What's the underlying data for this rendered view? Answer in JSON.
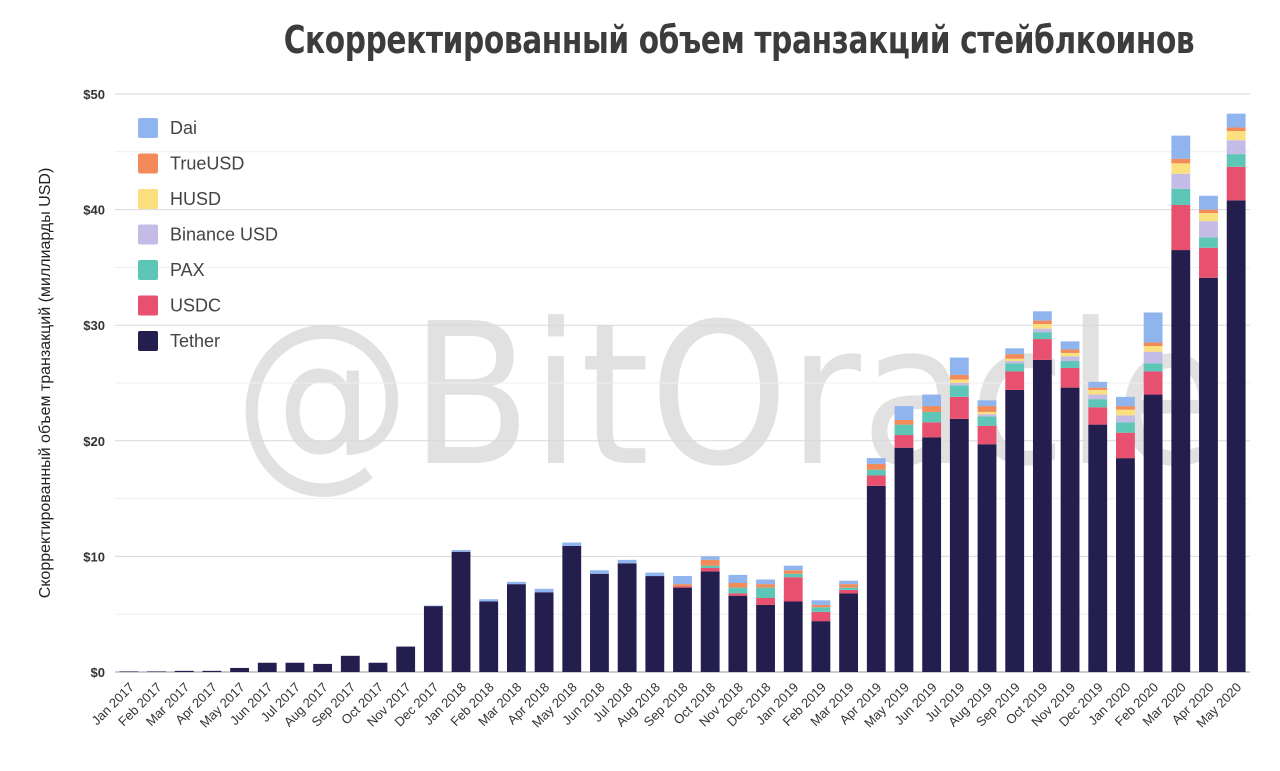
{
  "chart_data": {
    "type": "bar",
    "stacked": true,
    "title": "Скорректированный объем транзакций стейблкоинов",
    "ylabel": "Скорректированный объем транзакций (миллиарды USD)",
    "ylim": [
      0,
      50
    ],
    "yticks": [
      0,
      10,
      20,
      30,
      40,
      50
    ],
    "ytick_labels": [
      "$0",
      "$10",
      "$20",
      "$30",
      "$40",
      "$50"
    ],
    "grid": true,
    "legend_position": "top-left",
    "categories": [
      "Jan 2017",
      "Feb 2017",
      "Mar 2017",
      "Apr 2017",
      "May 2017",
      "Jun 2017",
      "Jul 2017",
      "Aug 2017",
      "Sep 2017",
      "Oct 2017",
      "Nov 2017",
      "Dec 2017",
      "Jan 2018",
      "Feb 2018",
      "Mar 2018",
      "Apr 2018",
      "May 2018",
      "Jun 2018",
      "Jul 2018",
      "Aug 2018",
      "Sep 2018",
      "Oct 2018",
      "Nov 2018",
      "Dec 2018",
      "Jan 2019",
      "Feb 2019",
      "Mar 2019",
      "Apr 2019",
      "May 2019",
      "Jun 2019",
      "Jul 2019",
      "Aug 2019",
      "Sep 2019",
      "Oct 2019",
      "Nov 2019",
      "Dec 2019",
      "Jan 2020",
      "Feb 2020",
      "Mar 2020",
      "Apr 2020",
      "May 2020"
    ],
    "series": [
      {
        "name": "Tether",
        "color": "#231e4e",
        "values": [
          0.05,
          0.05,
          0.1,
          0.1,
          0.35,
          0.8,
          0.8,
          0.7,
          1.4,
          0.8,
          2.2,
          5.7,
          10.4,
          6.1,
          7.6,
          6.9,
          10.9,
          8.5,
          9.4,
          8.3,
          7.3,
          8.7,
          6.6,
          5.8,
          6.1,
          4.4,
          6.8,
          16.1,
          19.4,
          20.3,
          21.9,
          19.7,
          24.4,
          27.0,
          24.6,
          21.4,
          18.5,
          24.0,
          36.5,
          34.1,
          40.8
        ]
      },
      {
        "name": "USDC",
        "color": "#e8506f",
        "values": [
          0,
          0,
          0,
          0,
          0,
          0,
          0,
          0,
          0,
          0,
          0,
          0,
          0,
          0,
          0,
          0,
          0,
          0,
          0,
          0,
          0.1,
          0.3,
          0.2,
          0.6,
          2.1,
          0.8,
          0.3,
          0.9,
          1.1,
          1.3,
          1.9,
          1.6,
          1.6,
          1.8,
          1.7,
          1.5,
          2.2,
          2.0,
          3.9,
          2.6,
          2.9
        ]
      },
      {
        "name": "PAX",
        "color": "#5ec6b6",
        "values": [
          0,
          0,
          0,
          0,
          0,
          0,
          0,
          0,
          0,
          0,
          0,
          0,
          0,
          0,
          0,
          0,
          0,
          0,
          0,
          0,
          0,
          0.2,
          0.5,
          0.9,
          0.3,
          0.4,
          0.2,
          0.5,
          0.9,
          0.9,
          1.0,
          0.8,
          0.7,
          0.6,
          0.6,
          0.7,
          0.9,
          0.7,
          1.4,
          0.9,
          1.1
        ]
      },
      {
        "name": "Binance USD",
        "color": "#c4bbe6",
        "values": [
          0,
          0,
          0,
          0,
          0,
          0,
          0,
          0,
          0,
          0,
          0,
          0,
          0,
          0,
          0,
          0,
          0,
          0,
          0,
          0,
          0,
          0,
          0,
          0,
          0,
          0,
          0,
          0,
          0,
          0,
          0.2,
          0.2,
          0.2,
          0.3,
          0.4,
          0.4,
          0.6,
          1.0,
          1.3,
          1.4,
          1.2
        ]
      },
      {
        "name": "HUSD",
        "color": "#fbe07f",
        "values": [
          0,
          0,
          0,
          0,
          0,
          0,
          0,
          0,
          0,
          0,
          0,
          0,
          0,
          0,
          0,
          0,
          0,
          0,
          0,
          0,
          0,
          0,
          0,
          0,
          0,
          0,
          0,
          0,
          0,
          0,
          0.3,
          0.2,
          0.2,
          0.4,
          0.3,
          0.4,
          0.5,
          0.5,
          0.9,
          0.7,
          0.8
        ]
      },
      {
        "name": "TrueUSD",
        "color": "#f28a5a",
        "values": [
          0,
          0,
          0,
          0,
          0,
          0,
          0,
          0,
          0,
          0,
          0,
          0,
          0,
          0,
          0,
          0,
          0,
          0,
          0,
          0,
          0.2,
          0.5,
          0.4,
          0.3,
          0.3,
          0.2,
          0.3,
          0.5,
          0.4,
          0.5,
          0.4,
          0.5,
          0.4,
          0.3,
          0.3,
          0.2,
          0.3,
          0.3,
          0.4,
          0.3,
          0.3
        ]
      },
      {
        "name": "Dai",
        "color": "#8fb4ee",
        "values": [
          0,
          0,
          0,
          0,
          0,
          0,
          0,
          0,
          0,
          0,
          0,
          0.05,
          0.15,
          0.2,
          0.2,
          0.3,
          0.3,
          0.3,
          0.3,
          0.3,
          0.7,
          0.3,
          0.7,
          0.4,
          0.4,
          0.4,
          0.3,
          0.5,
          1.2,
          1.0,
          1.5,
          0.5,
          0.5,
          0.8,
          0.7,
          0.5,
          0.8,
          2.6,
          2.0,
          1.2,
          1.2
        ]
      }
    ]
  },
  "watermark": "@BitOracle"
}
